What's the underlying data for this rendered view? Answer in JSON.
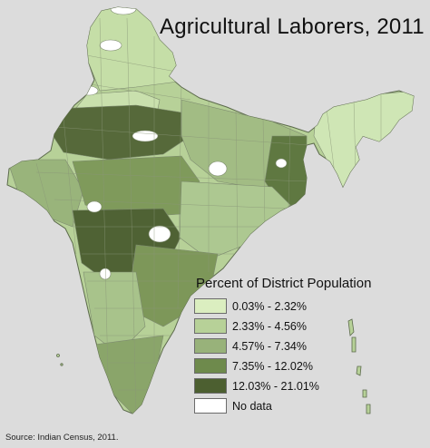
{
  "title": "Agricultural Laborers, 2011",
  "legend": {
    "title": "Percent of District Population",
    "items": [
      {
        "label": "0.03% - 2.32%",
        "color": "#dbeec0"
      },
      {
        "label": "2.33% - 4.56%",
        "color": "#b7d198"
      },
      {
        "label": "4.57% - 7.34%",
        "color": "#98b27a"
      },
      {
        "label": "7.35% - 12.02%",
        "color": "#6e8a4c"
      },
      {
        "label": "12.03% - 21.01%",
        "color": "#4c5f30"
      },
      {
        "label": "No data",
        "color": "#ffffff"
      }
    ]
  },
  "source": "Source: Indian Census, 2011.",
  "colors": {
    "background": "#dcdcdc",
    "borders": "#7d8a6f"
  }
}
